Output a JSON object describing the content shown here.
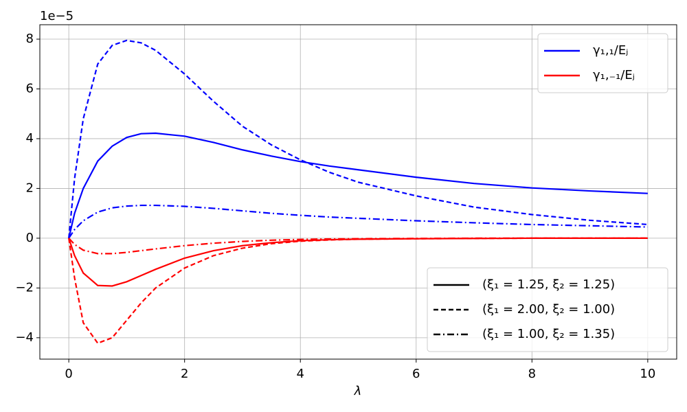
{
  "chart_data": {
    "type": "line",
    "x_label": "λ",
    "y_offset_label": "1e−5",
    "x": [
      0,
      0.1,
      0.25,
      0.5,
      0.75,
      1,
      1.25,
      1.5,
      2,
      2.5,
      3,
      3.5,
      4,
      4.5,
      5,
      6,
      7,
      8,
      9,
      10
    ],
    "series": [
      {
        "color": "#0000ff",
        "dash": "solid",
        "values": [
          0,
          1.0,
          2.0,
          3.1,
          3.7,
          4.05,
          4.2,
          4.22,
          4.1,
          3.85,
          3.55,
          3.3,
          3.08,
          2.9,
          2.75,
          2.45,
          2.2,
          2.02,
          1.9,
          1.8
        ]
      },
      {
        "color": "#0000ff",
        "dash": "dashed",
        "values": [
          0,
          2.4,
          4.8,
          7.0,
          7.75,
          7.95,
          7.85,
          7.55,
          6.6,
          5.5,
          4.5,
          3.75,
          3.15,
          2.65,
          2.25,
          1.7,
          1.25,
          0.95,
          0.72,
          0.55
        ]
      },
      {
        "color": "#0000ff",
        "dash": "dashdot",
        "values": [
          0,
          0.35,
          0.7,
          1.05,
          1.22,
          1.29,
          1.32,
          1.32,
          1.28,
          1.2,
          1.1,
          1.0,
          0.92,
          0.85,
          0.8,
          0.7,
          0.62,
          0.55,
          0.5,
          0.45
        ]
      },
      {
        "color": "#ff0000",
        "dash": "solid",
        "values": [
          0,
          -0.7,
          -1.4,
          -1.9,
          -1.92,
          -1.75,
          -1.5,
          -1.25,
          -0.8,
          -0.5,
          -0.3,
          -0.18,
          -0.1,
          -0.06,
          -0.04,
          -0.02,
          -0.01,
          0,
          0,
          0
        ]
      },
      {
        "color": "#ff0000",
        "dash": "dashed",
        "values": [
          0,
          -1.6,
          -3.4,
          -4.22,
          -4.0,
          -3.3,
          -2.6,
          -2.0,
          -1.2,
          -0.7,
          -0.4,
          -0.22,
          -0.12,
          -0.07,
          -0.04,
          -0.02,
          -0.01,
          0,
          0,
          0
        ]
      },
      {
        "color": "#ff0000",
        "dash": "dashdot",
        "values": [
          0,
          -0.25,
          -0.48,
          -0.62,
          -0.62,
          -0.57,
          -0.5,
          -0.43,
          -0.3,
          -0.2,
          -0.13,
          -0.08,
          -0.05,
          -0.03,
          -0.02,
          -0.01,
          0,
          0,
          0,
          0
        ]
      }
    ],
    "legends": [
      {
        "loc": "upper right",
        "entries": [
          {
            "label": "γ₁,₁/Eⱼ",
            "color": "#0000ff",
            "dash": "solid"
          },
          {
            "label": "γ₁,₋₁/Eⱼ",
            "color": "#ff0000",
            "dash": "solid"
          }
        ]
      },
      {
        "loc": "lower right",
        "entries": [
          {
            "label": "(ξ₁ = 1.25, ξ₂ = 1.25)",
            "color": "#000000",
            "dash": "solid"
          },
          {
            "label": "(ξ₁ = 2.00, ξ₂ = 1.00)",
            "color": "#000000",
            "dash": "dashed"
          },
          {
            "label": "(ξ₁ = 1.00, ξ₂ = 1.35)",
            "color": "#000000",
            "dash": "dashdot"
          }
        ]
      }
    ],
    "xlim": [
      -0.5,
      10.5
    ],
    "ylim": [
      -4.86,
      8.58
    ],
    "xticks": [
      0,
      2,
      4,
      6,
      8,
      10
    ],
    "yticks": [
      {
        "value": -4,
        "label": "−4"
      },
      {
        "value": -2,
        "label": "−2"
      },
      0,
      2,
      4,
      6,
      8
    ],
    "grid": true
  }
}
